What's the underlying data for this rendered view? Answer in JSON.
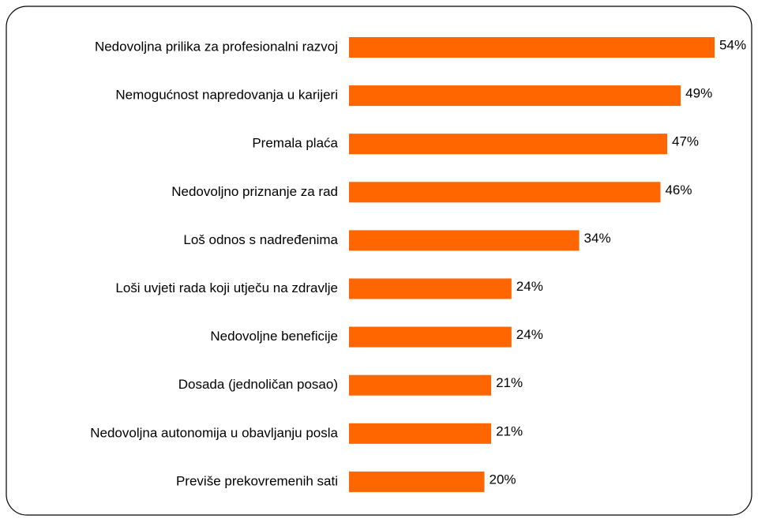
{
  "chart_data": {
    "type": "bar",
    "orientation": "horizontal",
    "categories": [
      "Nedovoljna prilika za profesionalni razvoj",
      "Nemogućnost napredovanja u karijeri",
      "Premala plaća",
      "Nedovoljno priznanje za rad",
      "Loš odnos s nadređenima",
      "Loši uvjeti rada koji utječu na zdravlje",
      "Nedovoljne beneficije",
      "Dosada (jednoličan posao)",
      "Nedovoljna autonomija u obavljanju posla",
      "Previše prekovremenih sati"
    ],
    "values": [
      54,
      49,
      47,
      46,
      34,
      24,
      24,
      21,
      21,
      20
    ],
    "value_labels": [
      "54%",
      "49%",
      "47%",
      "46%",
      "34%",
      "24%",
      "24%",
      "21%",
      "21%",
      "20%"
    ],
    "color": "#ff6600"
  }
}
